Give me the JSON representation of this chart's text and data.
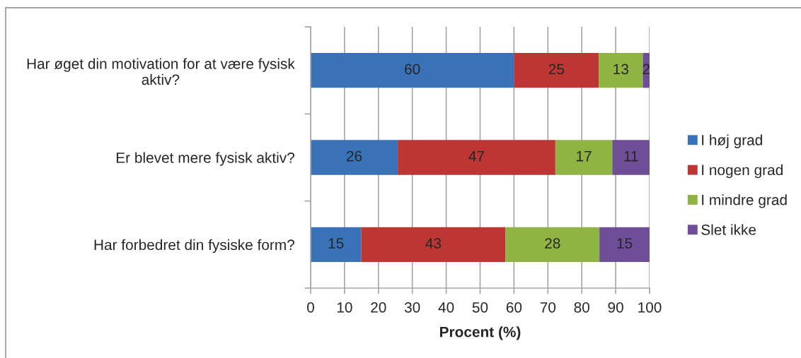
{
  "chart_data": {
    "type": "bar",
    "orientation": "horizontal",
    "stacked": true,
    "categories": [
      "Har øget din motivation for at være fysisk aktiv?",
      "Er blevet mere fysisk aktiv?",
      "Har forbedret din fysiske form?"
    ],
    "series": [
      {
        "name": "I høj grad",
        "color": "#3a72b8",
        "values": [
          60,
          25.7,
          14.9
        ],
        "value_labels": [
          "60",
          "26",
          "15"
        ]
      },
      {
        "name": "I nogen grad",
        "color": "#bd3633",
        "values": [
          25,
          46.5,
          42.6
        ],
        "value_labels": [
          "25",
          "47",
          "43"
        ]
      },
      {
        "name": "I mindre grad",
        "color": "#8fb443",
        "values": [
          13,
          16.8,
          27.7
        ],
        "value_labels": [
          "13",
          "17",
          "28"
        ]
      },
      {
        "name": "Slet ikke",
        "color": "#6f4e98",
        "values": [
          2,
          11.0,
          14.8
        ],
        "value_labels": [
          "2",
          "11",
          "15"
        ]
      }
    ],
    "xlabel": "Procent (%)",
    "xlim": [
      0,
      100
    ],
    "xticks": [
      0,
      10,
      20,
      30,
      40,
      50,
      60,
      70,
      80,
      90,
      100
    ],
    "grid": "x",
    "legend": "right"
  }
}
